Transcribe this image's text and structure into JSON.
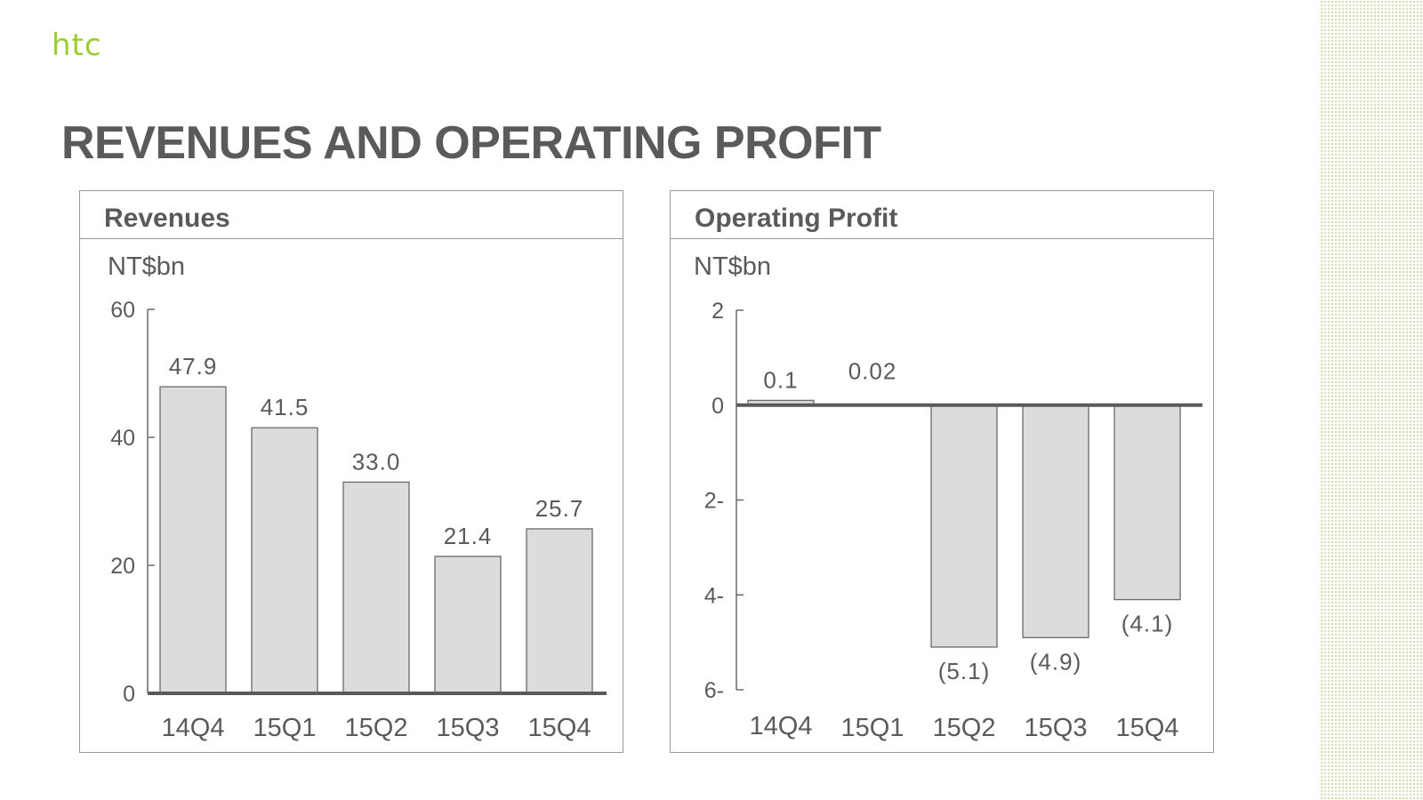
{
  "brand": {
    "logo_text": "htc",
    "accent_color": "#9acd32"
  },
  "page": {
    "title": "REVENUES AND OPERATING PROFIT"
  },
  "chart_data": [
    {
      "type": "bar",
      "panel_title": "Revenues",
      "unit": "NT$bn",
      "categories": [
        "14Q4",
        "15Q1",
        "15Q2",
        "15Q3",
        "15Q4"
      ],
      "values": [
        47.9,
        41.5,
        33.0,
        21.4,
        25.7
      ],
      "data_labels": [
        "47.9",
        "41.5",
        "33.0",
        "21.4",
        "25.7"
      ],
      "y_ticks": [
        0,
        20,
        40,
        60
      ],
      "y_tick_labels": [
        "0",
        "20",
        "40",
        "60"
      ],
      "ylim": [
        0,
        60
      ],
      "bar_color": "#dcdcdc",
      "grid": false
    },
    {
      "type": "bar",
      "panel_title": "Operating Profit",
      "unit": "NT$bn",
      "categories": [
        "14Q4",
        "15Q1",
        "15Q2",
        "15Q3",
        "15Q4"
      ],
      "values": [
        0.1,
        0.02,
        -5.1,
        -4.9,
        -4.1
      ],
      "data_labels": [
        "0.1",
        "0.02",
        "(5.1)",
        "(4.9)",
        "(4.1)"
      ],
      "y_ticks": [
        2,
        0,
        -2,
        -4,
        -6
      ],
      "y_tick_labels": [
        "2",
        "0",
        "2-",
        "4-",
        "6-"
      ],
      "ylim": [
        -6,
        2
      ],
      "bar_color": "#dcdcdc",
      "grid": false
    }
  ]
}
